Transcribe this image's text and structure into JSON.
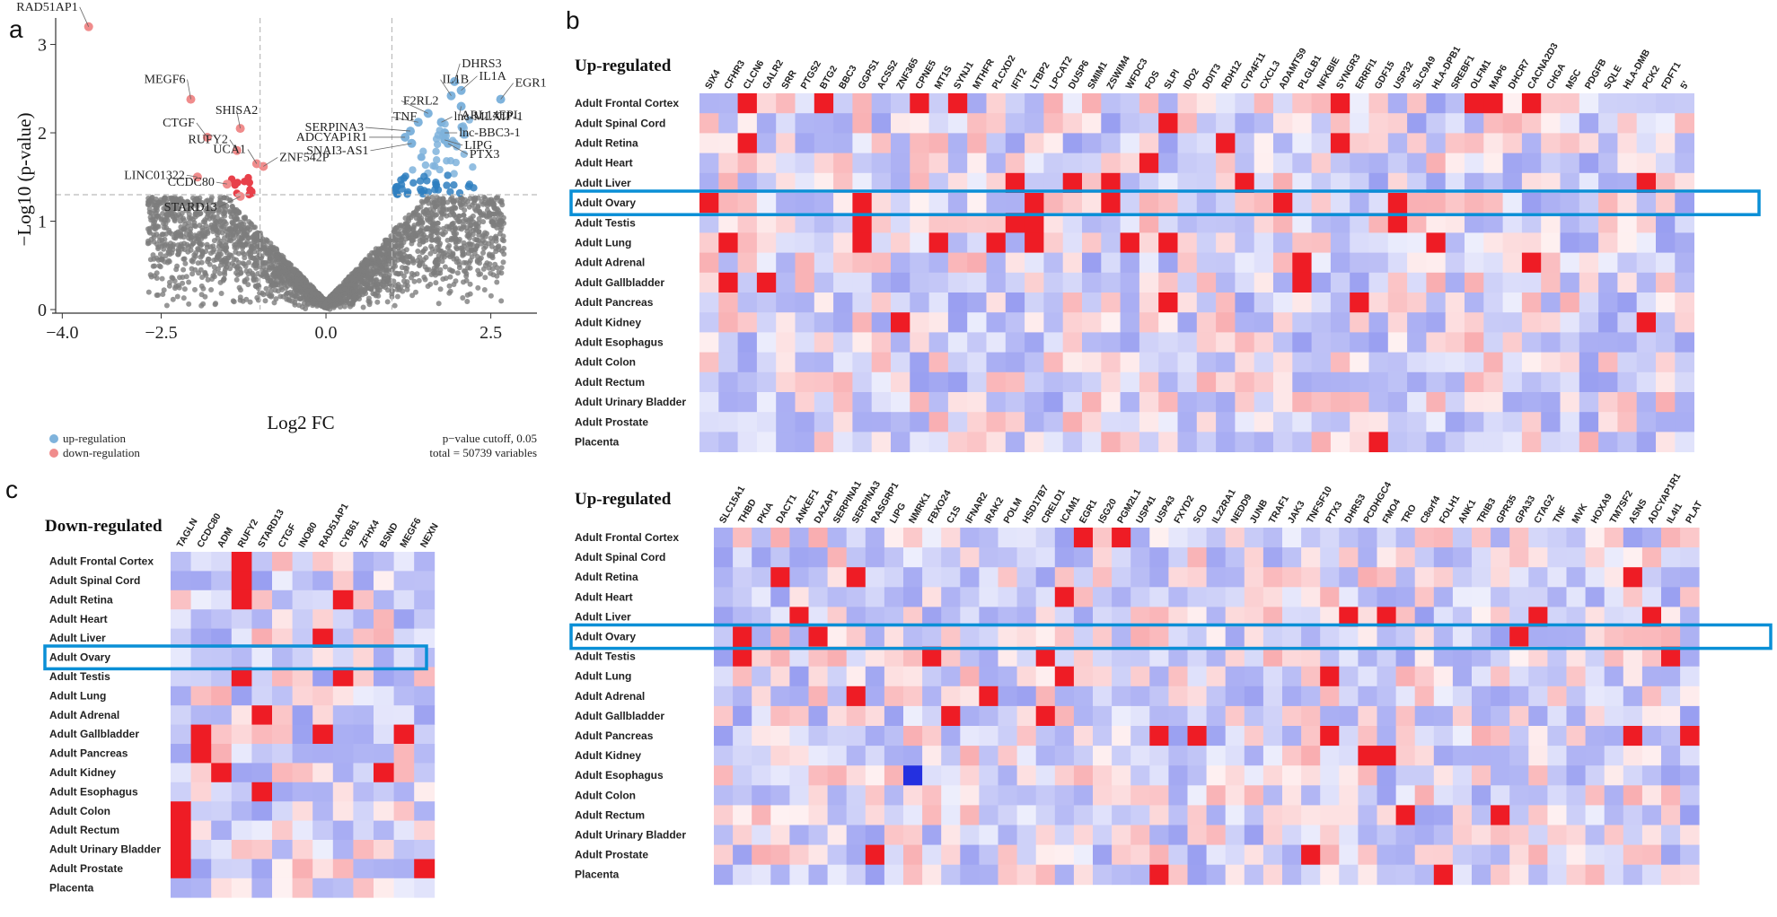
{
  "panels": {
    "a": "a",
    "b": "b",
    "c": "c"
  },
  "colors": {
    "up": "#7fb3dc",
    "up_dark": "#2f7fbf",
    "down": "#f08c8c",
    "down_dark": "#e8404a",
    "background_points": "#7d7d7d",
    "highlight": "#0a8fd6",
    "heat_high": "#ee1c25",
    "heat_low": "#2430e0"
  },
  "chart_data": [
    {
      "type": "scatter",
      "panel": "a",
      "xlabel": "Log2 FC",
      "ylabel": "−Log10 (p-value)",
      "xlim": [
        -4.1,
        3.2
      ],
      "ylim": [
        0,
        3.3
      ],
      "xticks": [
        -4.0,
        -2.5,
        0.0,
        2.5
      ],
      "xtick_labels": [
        "−4.0",
        "−2.5",
        "0.0",
        "2.5"
      ],
      "yticks": [
        0,
        1,
        2,
        3
      ],
      "fc_cutoffs": [
        -1,
        1
      ],
      "p_cutoff_y": 1.3,
      "legend": {
        "up": "up-regulation",
        "down": "down-regulation"
      },
      "annotation_lines": [
        "p−value cutoff, 0.05",
        "total = 50739 variables"
      ],
      "labeled_points": [
        {
          "label": "RAD51AP1",
          "x": -3.6,
          "y": 3.2,
          "group": "down"
        },
        {
          "label": "MEGF6",
          "x": -2.05,
          "y": 2.38,
          "group": "down"
        },
        {
          "label": "CTGF",
          "x": -1.8,
          "y": 1.95,
          "group": "down"
        },
        {
          "label": "SHISA2",
          "x": -1.3,
          "y": 2.05,
          "group": "down"
        },
        {
          "label": "RUFY2",
          "x": -1.35,
          "y": 1.8,
          "group": "down"
        },
        {
          "label": "UCA1",
          "x": -1.05,
          "y": 1.65,
          "group": "down"
        },
        {
          "label": "ZNF542P",
          "x": -0.95,
          "y": 1.62,
          "group": "down"
        },
        {
          "label": "LINC01322",
          "x": -1.95,
          "y": 1.5,
          "group": "down"
        },
        {
          "label": "CCDC80",
          "x": -1.5,
          "y": 1.42,
          "group": "down"
        },
        {
          "label": "STARD13",
          "x": -1.3,
          "y": 1.28,
          "group": "down"
        },
        {
          "label": "DHRS3",
          "x": 1.95,
          "y": 2.58,
          "group": "up"
        },
        {
          "label": "IL1B",
          "x": 1.9,
          "y": 2.42,
          "group": "up"
        },
        {
          "label": "IL1A",
          "x": 2.05,
          "y": 2.48,
          "group": "up"
        },
        {
          "label": "EGR1",
          "x": 2.65,
          "y": 2.38,
          "group": "up"
        },
        {
          "label": "ARL14EPL",
          "x": 2.05,
          "y": 2.3,
          "group": "up"
        },
        {
          "label": "F2RL2",
          "x": 1.55,
          "y": 2.22,
          "group": "up"
        },
        {
          "label": "TNF",
          "x": 1.4,
          "y": 2.12,
          "group": "up"
        },
        {
          "label": "lnc-MLXIP-1",
          "x": 1.75,
          "y": 2.12,
          "group": "up"
        },
        {
          "label": "SERPINA3",
          "x": 1.28,
          "y": 2.02,
          "group": "up"
        },
        {
          "label": "lnc-BBC3-1",
          "x": 1.8,
          "y": 2.0,
          "group": "up"
        },
        {
          "label": "ADCYAP1R1",
          "x": 1.2,
          "y": 1.95,
          "group": "up"
        },
        {
          "label": "LIPG",
          "x": 1.8,
          "y": 1.92,
          "group": "up"
        },
        {
          "label": "SNAI3-AS1",
          "x": 1.3,
          "y": 1.88,
          "group": "up"
        },
        {
          "label": "PTX3",
          "x": 1.85,
          "y": 1.88,
          "group": "up"
        }
      ]
    },
    {
      "type": "heatmap",
      "panel": "b-top",
      "title": "Up-regulated",
      "highlight_row": "Adult Ovary",
      "rows": [
        "Adult Frontal Cortex",
        "Adult Spinal Cord",
        "Adult Retina",
        "Adult Heart",
        "Adult Liver",
        "Adult Ovary",
        "Adult Testis",
        "Adult Lung",
        "Adult Adrenal",
        "Adult Gallbladder",
        "Adult Pancreas",
        "Adult Kidney",
        "Adult Esophagus",
        "Adult Colon",
        "Adult Rectum",
        "Adult Urinary Bladder",
        "Adult Prostate",
        "Placenta"
      ],
      "columns": [
        "SIX4",
        "CFHR3",
        "CLCN6",
        "GALR2",
        "SRR",
        "PTGS2",
        "BTG2",
        "BBC3",
        "GGPS1",
        "ACSS2",
        "ZNF365",
        "CPNE5",
        "MT1S",
        "SYNJ1",
        "MTHFR",
        "PLCXD2",
        "IFIT2",
        "LTBP2",
        "LPCAT2",
        "DUSP6",
        "SMIM1",
        "ZSWIM4",
        "WFDC3",
        "FOS",
        "SLPI",
        "IDO2",
        "DDIT3",
        "RDH12",
        "CYP4F11",
        "CXCL3",
        "ADAMTS9",
        "PLGLB1",
        "NFKBIE",
        "SYNGR3",
        "ERRFI1",
        "GDF15",
        "USP32",
        "SLC9A9",
        "HLA-DPB1",
        "SREBF1",
        "OLFM1",
        "MAP6",
        "DHCR7",
        "CACNA2D3",
        "CHGA",
        "MSC",
        "PDGFB",
        "SQLE",
        "HLA-DMB",
        "PCK2",
        "FDFT1",
        "5'"
      ],
      "strong_cells": [
        [
          0,
          2
        ],
        [
          0,
          6
        ],
        [
          0,
          11
        ],
        [
          0,
          13
        ],
        [
          0,
          33
        ],
        [
          0,
          40
        ],
        [
          0,
          41
        ],
        [
          0,
          43
        ],
        [
          1,
          24
        ],
        [
          2,
          2
        ],
        [
          2,
          27
        ],
        [
          2,
          33
        ],
        [
          3,
          23
        ],
        [
          4,
          16
        ],
        [
          4,
          19
        ],
        [
          4,
          21
        ],
        [
          4,
          28
        ],
        [
          4,
          49
        ],
        [
          5,
          0
        ],
        [
          5,
          8
        ],
        [
          5,
          17
        ],
        [
          5,
          21
        ],
        [
          5,
          30
        ],
        [
          5,
          36
        ],
        [
          6,
          8
        ],
        [
          6,
          16
        ],
        [
          6,
          17
        ],
        [
          6,
          36
        ],
        [
          7,
          1
        ],
        [
          7,
          8
        ],
        [
          7,
          12
        ],
        [
          7,
          15
        ],
        [
          7,
          17
        ],
        [
          7,
          22
        ],
        [
          7,
          24
        ],
        [
          7,
          38
        ],
        [
          8,
          31
        ],
        [
          8,
          43
        ],
        [
          9,
          1
        ],
        [
          9,
          3
        ],
        [
          9,
          31
        ],
        [
          10,
          24
        ],
        [
          10,
          34
        ],
        [
          11,
          10
        ],
        [
          11,
          49
        ],
        [
          17,
          35
        ]
      ]
    },
    {
      "type": "heatmap",
      "panel": "b-bottom",
      "title": "Up-regulated",
      "highlight_row": "Adult Ovary",
      "rows": [
        "Adult Frontal Cortex",
        "Adult Spinal Cord",
        "Adult Retina",
        "Adult Heart",
        "Adult Liver",
        "Adult Ovary",
        "Adult Testis",
        "Adult Lung",
        "Adult Adrenal",
        "Adult Gallbladder",
        "Adult Pancreas",
        "Adult Kidney",
        "Adult Esophagus",
        "Adult Colon",
        "Adult Rectum",
        "Adult Urinary Bladder",
        "Adult Prostate",
        "Placenta"
      ],
      "columns": [
        "SLC15A1",
        "THBD",
        "PKIA",
        "DACT1",
        "ANKEF1",
        "DAZAP1",
        "SERPINA1",
        "SERPINA3",
        "RASGRP1",
        "LIPG",
        "NMRK1",
        "FBXO24",
        "C1S",
        "IFNAR2",
        "IRAK2",
        "POLM",
        "HSD17B7",
        "CRELD1",
        "ICAM1",
        "EGR1",
        "ISG20",
        "PGM2L1",
        "USP41",
        "USP43",
        "FXYD2",
        "SCD",
        "IL22RA1",
        "NEDD9",
        "JUNB",
        "TRAF1",
        "JAK3",
        "TNFSF10",
        "PTX3",
        "DHRS3",
        "PCDHGC4",
        "FMO4",
        "TRO",
        "C8orf4",
        "FOLH1",
        "ANK1",
        "TRIB3",
        "GPR35",
        "GPA33",
        "CTAG2",
        "TNF",
        "MVK",
        "HOXA9",
        "TM7SF2",
        "ASNS",
        "ADCYAP1R1",
        "IL4I1",
        "PLAT"
      ],
      "strong_cells": [
        [
          0,
          19
        ],
        [
          0,
          21
        ],
        [
          2,
          3
        ],
        [
          2,
          7
        ],
        [
          2,
          48
        ],
        [
          3,
          18
        ],
        [
          4,
          4
        ],
        [
          4,
          33
        ],
        [
          4,
          35
        ],
        [
          4,
          43
        ],
        [
          4,
          49
        ],
        [
          5,
          1
        ],
        [
          5,
          5
        ],
        [
          5,
          42
        ],
        [
          6,
          1
        ],
        [
          6,
          11
        ],
        [
          6,
          17
        ],
        [
          6,
          50
        ],
        [
          7,
          18
        ],
        [
          7,
          32
        ],
        [
          8,
          7
        ],
        [
          8,
          14
        ],
        [
          9,
          12
        ],
        [
          9,
          17
        ],
        [
          10,
          23
        ],
        [
          10,
          25
        ],
        [
          10,
          32
        ],
        [
          10,
          48
        ],
        [
          10,
          51
        ],
        [
          11,
          34
        ],
        [
          11,
          35
        ],
        [
          12,
          10
        ],
        [
          14,
          36
        ],
        [
          14,
          41
        ],
        [
          16,
          8
        ],
        [
          16,
          31
        ],
        [
          17,
          23
        ],
        [
          17,
          38
        ]
      ]
    },
    {
      "type": "heatmap",
      "panel": "c",
      "title": "Down-regulated",
      "highlight_row": "Adult Ovary",
      "rows": [
        "Adult Frontal Cortex",
        "Adult Spinal Cord",
        "Adult Retina",
        "Adult Heart",
        "Adult Liver",
        "Adult Ovary",
        "Adult Testis",
        "Adult Lung",
        "Adult Adrenal",
        "Adult Gallbladder",
        "Adult Pancreas",
        "Adult Kidney",
        "Adult Esophagus",
        "Adult Colon",
        "Adult Rectum",
        "Adult Urinary Bladder",
        "Adult Prostate",
        "Placenta"
      ],
      "columns": [
        "TAGLN",
        "CCDC80",
        "ADM",
        "RUFY2",
        "STARD13",
        "CTGF",
        "INO80",
        "RAD51AP1",
        "CYB61",
        "ZFHX4",
        "BSND",
        "MEGF6",
        "NEXN"
      ],
      "strong_cells": [
        [
          0,
          3
        ],
        [
          1,
          3
        ],
        [
          2,
          3
        ],
        [
          2,
          8
        ],
        [
          4,
          7
        ],
        [
          6,
          3
        ],
        [
          6,
          8
        ],
        [
          8,
          4
        ],
        [
          9,
          1
        ],
        [
          9,
          7
        ],
        [
          9,
          11
        ],
        [
          10,
          1
        ],
        [
          11,
          2
        ],
        [
          11,
          10
        ],
        [
          12,
          4
        ],
        [
          13,
          0
        ],
        [
          14,
          0
        ],
        [
          15,
          0
        ],
        [
          16,
          0
        ],
        [
          16,
          12
        ]
      ]
    }
  ]
}
